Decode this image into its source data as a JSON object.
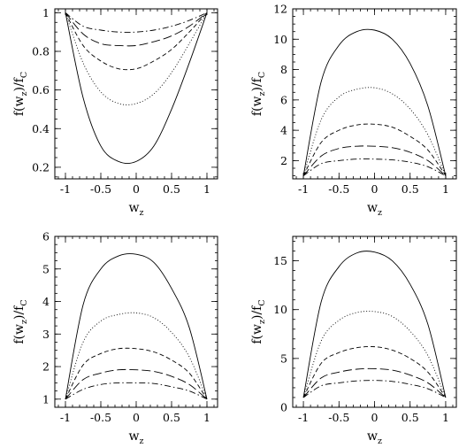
{
  "chart_data": [
    {
      "type": "line",
      "xlabel": "w",
      "xlabel_sub": "z",
      "ylabel_main": "f(w",
      "ylabel_sub1": "z",
      "ylabel_mid": ")/f",
      "ylabel_sub2": "C",
      "xlim": [
        -1.15,
        1.15
      ],
      "ylim": [
        0.14,
        1.02
      ],
      "xticks": [
        "-1",
        "-0.5",
        "0",
        "0.5",
        "1"
      ],
      "yticks": [
        "0.2",
        "0.4",
        "0.6",
        "0.8",
        "1"
      ],
      "xtick_values": [
        -1,
        -0.5,
        0,
        0.5,
        1
      ],
      "ytick_values": [
        0.2,
        0.4,
        0.6,
        0.8,
        1
      ],
      "xminor_step": 0.1,
      "yminor_step": 0.05,
      "series": [
        {
          "style": "solid",
          "x": [
            -1,
            -0.75,
            -0.5,
            -0.25,
            0,
            0.25,
            0.5,
            0.75,
            1
          ],
          "values": [
            1.0,
            0.56,
            0.31,
            0.23,
            0.23,
            0.31,
            0.5,
            0.74,
            1.0
          ]
        },
        {
          "style": "dotted",
          "x": [
            -1,
            -0.75,
            -0.5,
            -0.25,
            0,
            0.25,
            0.5,
            0.75,
            1
          ],
          "values": [
            1.0,
            0.74,
            0.59,
            0.53,
            0.53,
            0.58,
            0.69,
            0.84,
            1.0
          ]
        },
        {
          "style": "short-dash",
          "x": [
            -1,
            -0.75,
            -0.5,
            -0.25,
            0,
            0.25,
            0.5,
            0.75,
            1
          ],
          "values": [
            1.0,
            0.83,
            0.75,
            0.71,
            0.71,
            0.75,
            0.81,
            0.9,
            1.0
          ]
        },
        {
          "style": "long-dash",
          "x": [
            -1,
            -0.75,
            -0.5,
            -0.25,
            0,
            0.25,
            0.5,
            0.75,
            1
          ],
          "values": [
            1.0,
            0.89,
            0.84,
            0.83,
            0.83,
            0.85,
            0.88,
            0.93,
            1.0
          ]
        },
        {
          "style": "dash-dot",
          "x": [
            -1,
            -0.75,
            -0.5,
            -0.25,
            0,
            0.25,
            0.5,
            0.75,
            1
          ],
          "values": [
            1.0,
            0.93,
            0.91,
            0.9,
            0.9,
            0.91,
            0.93,
            0.96,
            1.0
          ]
        }
      ]
    },
    {
      "type": "line",
      "xlabel": "w",
      "xlabel_sub": "z",
      "ylabel_main": "f(w",
      "ylabel_sub1": "z",
      "ylabel_mid": ")/f",
      "ylabel_sub2": "C",
      "xlim": [
        -1.15,
        1.15
      ],
      "ylim": [
        0.8,
        12
      ],
      "xticks": [
        "-1",
        "-0.5",
        "0",
        "0.5",
        "1"
      ],
      "yticks": [
        "2",
        "4",
        "6",
        "8",
        "10",
        "12"
      ],
      "xtick_values": [
        -1,
        -0.5,
        0,
        0.5,
        1
      ],
      "ytick_values": [
        2,
        4,
        6,
        8,
        10,
        12
      ],
      "xminor_step": 0.1,
      "yminor_step": 0.5,
      "series": [
        {
          "style": "solid",
          "x": [
            -1,
            -0.75,
            -0.5,
            -0.25,
            0,
            0.25,
            0.5,
            0.75,
            1
          ],
          "values": [
            1.0,
            7.2,
            9.6,
            10.5,
            10.6,
            10.0,
            8.4,
            5.6,
            1.0
          ]
        },
        {
          "style": "dotted",
          "x": [
            -1,
            -0.75,
            -0.5,
            -0.25,
            0,
            0.25,
            0.5,
            0.75,
            1
          ],
          "values": [
            1.0,
            4.7,
            6.2,
            6.7,
            6.8,
            6.4,
            5.4,
            3.7,
            1.0
          ]
        },
        {
          "style": "short-dash",
          "x": [
            -1,
            -0.75,
            -0.5,
            -0.25,
            0,
            0.25,
            0.5,
            0.75,
            1
          ],
          "values": [
            1.0,
            3.2,
            4.0,
            4.35,
            4.4,
            4.2,
            3.6,
            2.7,
            1.0
          ]
        },
        {
          "style": "long-dash",
          "x": [
            -1,
            -0.75,
            -0.5,
            -0.25,
            0,
            0.25,
            0.5,
            0.75,
            1
          ],
          "values": [
            1.0,
            2.3,
            2.8,
            2.95,
            2.95,
            2.85,
            2.55,
            2.0,
            1.0
          ]
        },
        {
          "style": "dash-dot",
          "x": [
            -1,
            -0.75,
            -0.5,
            -0.25,
            0,
            0.25,
            0.5,
            0.75,
            1
          ],
          "values": [
            1.0,
            1.8,
            2.0,
            2.1,
            2.1,
            2.05,
            1.9,
            1.6,
            1.0
          ]
        }
      ]
    },
    {
      "type": "line",
      "xlabel": "w",
      "xlabel_sub": "z",
      "ylabel_main": "f(w",
      "ylabel_sub1": "z",
      "ylabel_mid": ")/f",
      "ylabel_sub2": "C",
      "xlim": [
        -1.15,
        1.15
      ],
      "ylim": [
        0.75,
        6
      ],
      "xticks": [
        "-1",
        "-0.5",
        "0",
        "0.5",
        "1"
      ],
      "yticks": [
        "1",
        "2",
        "3",
        "4",
        "5",
        "6"
      ],
      "xtick_values": [
        -1,
        -0.5,
        0,
        0.5,
        1
      ],
      "ytick_values": [
        1,
        2,
        3,
        4,
        5,
        6
      ],
      "xminor_step": 0.1,
      "yminor_step": 0.25,
      "series": [
        {
          "style": "solid",
          "x": [
            -1,
            -0.75,
            -0.5,
            -0.25,
            0,
            0.25,
            0.5,
            0.75,
            1
          ],
          "values": [
            1.0,
            3.9,
            5.0,
            5.4,
            5.45,
            5.2,
            4.4,
            3.2,
            1.0
          ]
        },
        {
          "style": "dotted",
          "x": [
            -1,
            -0.75,
            -0.5,
            -0.25,
            0,
            0.25,
            0.5,
            0.75,
            1
          ],
          "values": [
            1.0,
            2.75,
            3.4,
            3.6,
            3.65,
            3.5,
            3.05,
            2.3,
            1.0
          ]
        },
        {
          "style": "short-dash",
          "x": [
            -1,
            -0.75,
            -0.5,
            -0.25,
            0,
            0.25,
            0.5,
            0.75,
            1
          ],
          "values": [
            1.0,
            2.05,
            2.4,
            2.55,
            2.55,
            2.45,
            2.2,
            1.8,
            1.0
          ]
        },
        {
          "style": "long-dash",
          "x": [
            -1,
            -0.75,
            -0.5,
            -0.25,
            0,
            0.25,
            0.5,
            0.75,
            1
          ],
          "values": [
            1.0,
            1.6,
            1.8,
            1.9,
            1.9,
            1.85,
            1.7,
            1.45,
            1.0
          ]
        },
        {
          "style": "dash-dot",
          "x": [
            -1,
            -0.75,
            -0.5,
            -0.25,
            0,
            0.25,
            0.5,
            0.75,
            1
          ],
          "values": [
            1.0,
            1.3,
            1.45,
            1.5,
            1.5,
            1.48,
            1.38,
            1.25,
            1.0
          ]
        }
      ]
    },
    {
      "type": "line",
      "xlabel": "w",
      "xlabel_sub": "z",
      "ylabel_main": "f(w",
      "ylabel_sub1": "z",
      "ylabel_mid": ")/f",
      "ylabel_sub2": "C",
      "xlim": [
        -1.15,
        1.15
      ],
      "ylim": [
        0,
        17.5
      ],
      "xticks": [
        "-1",
        "-0.5",
        "0",
        "0.5",
        "1"
      ],
      "yticks": [
        "0",
        "5",
        "10",
        "15"
      ],
      "xtick_values": [
        -1,
        -0.5,
        0,
        0.5,
        1
      ],
      "ytick_values": [
        0,
        5,
        10,
        15
      ],
      "xminor_step": 0.1,
      "yminor_step": 1,
      "series": [
        {
          "style": "solid",
          "x": [
            -1,
            -0.75,
            -0.5,
            -0.25,
            0,
            0.25,
            0.5,
            0.75,
            1
          ],
          "values": [
            1.0,
            10.8,
            14.4,
            15.8,
            15.9,
            15.0,
            12.6,
            8.5,
            1.0
          ]
        },
        {
          "style": "dotted",
          "x": [
            -1,
            -0.75,
            -0.5,
            -0.25,
            0,
            0.25,
            0.5,
            0.75,
            1
          ],
          "values": [
            1.0,
            6.8,
            8.9,
            9.7,
            9.8,
            9.3,
            7.8,
            5.3,
            1.0
          ]
        },
        {
          "style": "short-dash",
          "x": [
            -1,
            -0.75,
            -0.5,
            -0.25,
            0,
            0.25,
            0.5,
            0.75,
            1
          ],
          "values": [
            1.0,
            4.5,
            5.6,
            6.1,
            6.2,
            5.85,
            5.0,
            3.6,
            1.0
          ]
        },
        {
          "style": "long-dash",
          "x": [
            -1,
            -0.75,
            -0.5,
            -0.25,
            0,
            0.25,
            0.5,
            0.75,
            1
          ],
          "values": [
            1.0,
            3.0,
            3.6,
            3.9,
            3.95,
            3.8,
            3.3,
            2.5,
            1.0
          ]
        },
        {
          "style": "dash-dot",
          "x": [
            -1,
            -0.75,
            -0.5,
            -0.25,
            0,
            0.25,
            0.5,
            0.75,
            1
          ],
          "values": [
            1.0,
            2.2,
            2.5,
            2.7,
            2.75,
            2.65,
            2.35,
            1.9,
            1.0
          ]
        }
      ]
    }
  ]
}
